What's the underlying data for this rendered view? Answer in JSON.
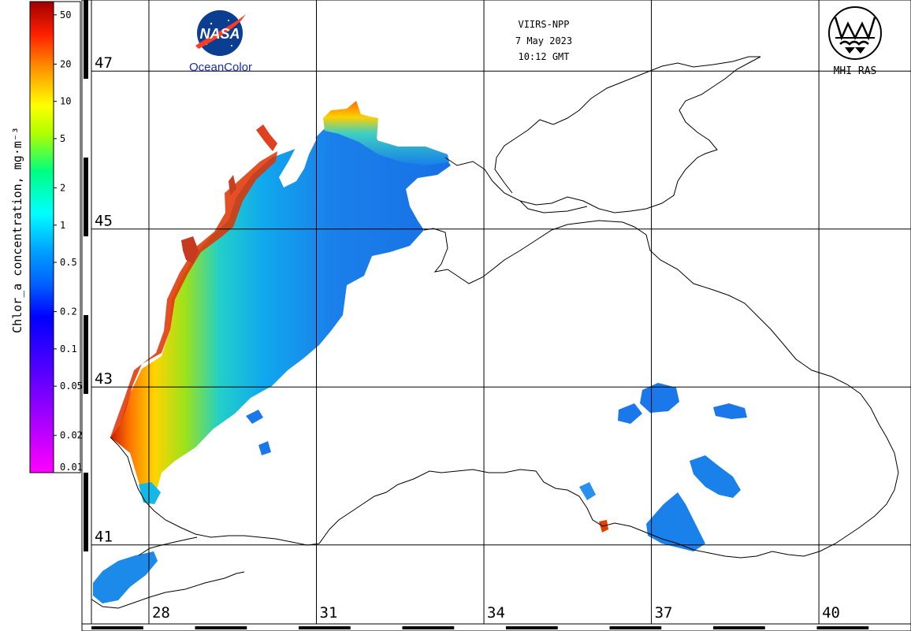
{
  "colorbar": {
    "title": "Chlor_a concentration, mg·m⁻³",
    "ticks": [
      {
        "label": "50",
        "value": 50
      },
      {
        "label": "20",
        "value": 20
      },
      {
        "label": "10",
        "value": 10
      },
      {
        "label": "5",
        "value": 5
      },
      {
        "label": "2",
        "value": 2
      },
      {
        "label": "1",
        "value": 1
      },
      {
        "label": "0.5",
        "value": 0.5
      },
      {
        "label": "0.2",
        "value": 0.2
      },
      {
        "label": "0.1",
        "value": 0.1
      },
      {
        "label": "0.05",
        "value": 0.05
      },
      {
        "label": "0.02",
        "value": 0.02
      },
      {
        "label": "0.01",
        "value": 0.01
      }
    ],
    "range": [
      0.01,
      64
    ],
    "scale": "log",
    "colors": [
      "#ff00ff",
      "#8000ff",
      "#0000ff",
      "#0080ff",
      "#00ffff",
      "#00ff80",
      "#80ff00",
      "#ffff00",
      "#ff8000",
      "#ff0000",
      "#a00000"
    ]
  },
  "header": {
    "satellite": "VIIRS-NPP",
    "date": "7 May 2023",
    "time": "10:12 GMT"
  },
  "logos": {
    "nasa_text": "NASA",
    "oceancolor": "OceanColor",
    "mhi": "MHI RAS"
  },
  "grid": {
    "lat_labels": [
      "47",
      "45",
      "43",
      "41"
    ],
    "lon_labels": [
      "28",
      "31",
      "34",
      "37",
      "40"
    ],
    "lat_values": [
      47,
      45,
      43,
      41
    ],
    "lon_values": [
      28,
      31,
      34,
      37,
      40
    ],
    "lon_range": [
      26.97,
      41.65
    ],
    "lat_range": [
      40.0,
      47.9
    ]
  },
  "colors": {
    "land_bg": "#ffffff",
    "coast": "#000000",
    "grid": "#000000",
    "nasa_blue": "#0b3d91",
    "nasa_red": "#fc3d21",
    "oceancolor_text": "#1a2fb0"
  }
}
